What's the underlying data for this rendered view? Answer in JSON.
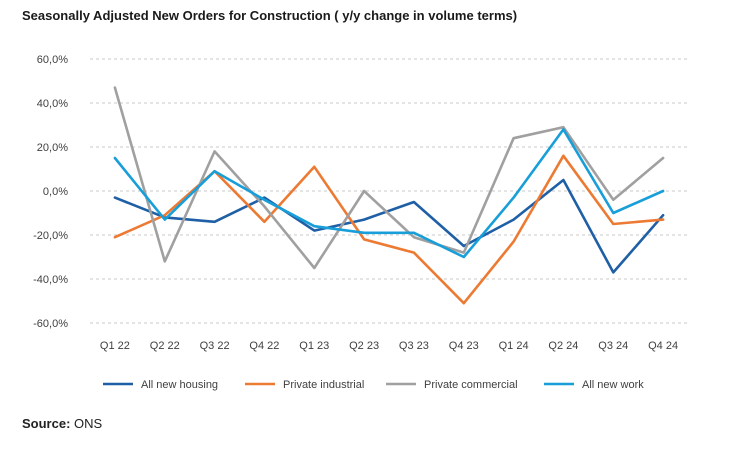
{
  "title": "Seasonally Adjusted New Orders for Construction ( y/y change in volume terms)",
  "source": {
    "label": "Source:",
    "value": "ONS"
  },
  "chart_data": {
    "type": "line",
    "categories": [
      "Q1 22",
      "Q2 22",
      "Q3 22",
      "Q4 22",
      "Q1 23",
      "Q2 23",
      "Q3 23",
      "Q4 23",
      "Q1 24",
      "Q2 24",
      "Q3 24",
      "Q4 24"
    ],
    "ylim": [
      -60,
      60
    ],
    "yticks": [
      60,
      40,
      20,
      0,
      -20,
      -40,
      -60
    ],
    "ytick_labels": [
      "60,0%",
      "40,0%",
      "20,0%",
      "0,0%",
      "-20,0%",
      "-40,0%",
      "-60,0%"
    ],
    "grid": "horizontal dashed",
    "legend_position": "bottom",
    "series": [
      {
        "name": "All new housing",
        "color": "#1f5fa6",
        "values": [
          -3,
          -12,
          -14,
          -3,
          -18,
          -13,
          -5,
          -25,
          -13,
          5,
          -37,
          -11
        ]
      },
      {
        "name": "Private industrial",
        "color": "#ec7a33",
        "values": [
          -21,
          -11,
          9,
          -14,
          11,
          -22,
          -28,
          -51,
          -23,
          16,
          -15,
          -13
        ]
      },
      {
        "name": "Private commercial",
        "color": "#a0a0a0",
        "values": [
          47,
          -32,
          18,
          -7,
          -35,
          0,
          -21,
          -28,
          24,
          29,
          -4,
          15
        ]
      },
      {
        "name": "All new work",
        "color": "#189ed8",
        "values": [
          15,
          -13,
          9,
          -4,
          -16,
          -19,
          -19,
          -30,
          -3,
          28,
          -10,
          0
        ]
      }
    ]
  }
}
